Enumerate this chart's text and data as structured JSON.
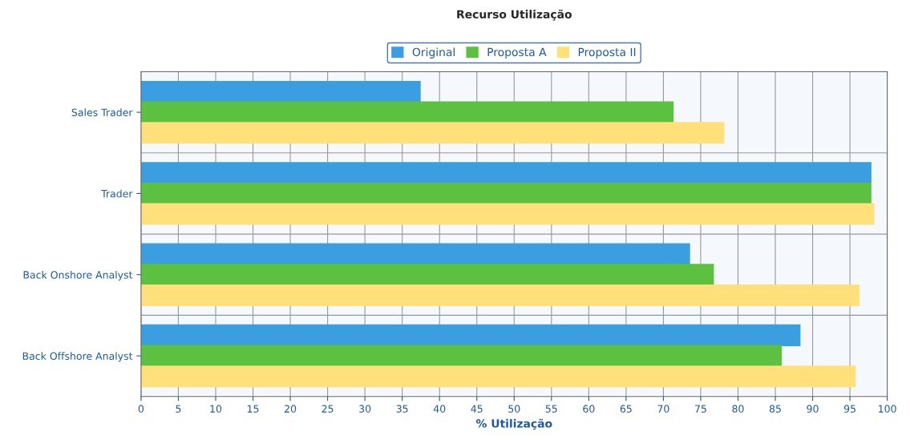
{
  "chart_data": {
    "type": "bar",
    "orientation": "horizontal",
    "title": "Recurso Utilização",
    "xlabel": "% Utilização",
    "categories": [
      "Sales Trader",
      "Trader",
      "Back Onshore Analyst",
      "Back Offshore Analyst"
    ],
    "series": [
      {
        "name": "Original",
        "color": "#3a9ee0",
        "values": [
          37.4,
          97.8,
          73.5,
          88.3
        ]
      },
      {
        "name": "Proposta A",
        "color": "#5cc040",
        "values": [
          71.3,
          97.8,
          76.7,
          85.8
        ]
      },
      {
        "name": "Proposta II",
        "color": "#ffe07a",
        "values": [
          78.1,
          98.2,
          96.2,
          95.7
        ]
      }
    ],
    "xlim": [
      0,
      100
    ],
    "xticks": [
      0,
      5,
      10,
      15,
      20,
      25,
      30,
      35,
      40,
      45,
      50,
      55,
      60,
      65,
      70,
      75,
      80,
      85,
      90,
      95,
      100
    ],
    "grid": "x",
    "legend": "top"
  }
}
